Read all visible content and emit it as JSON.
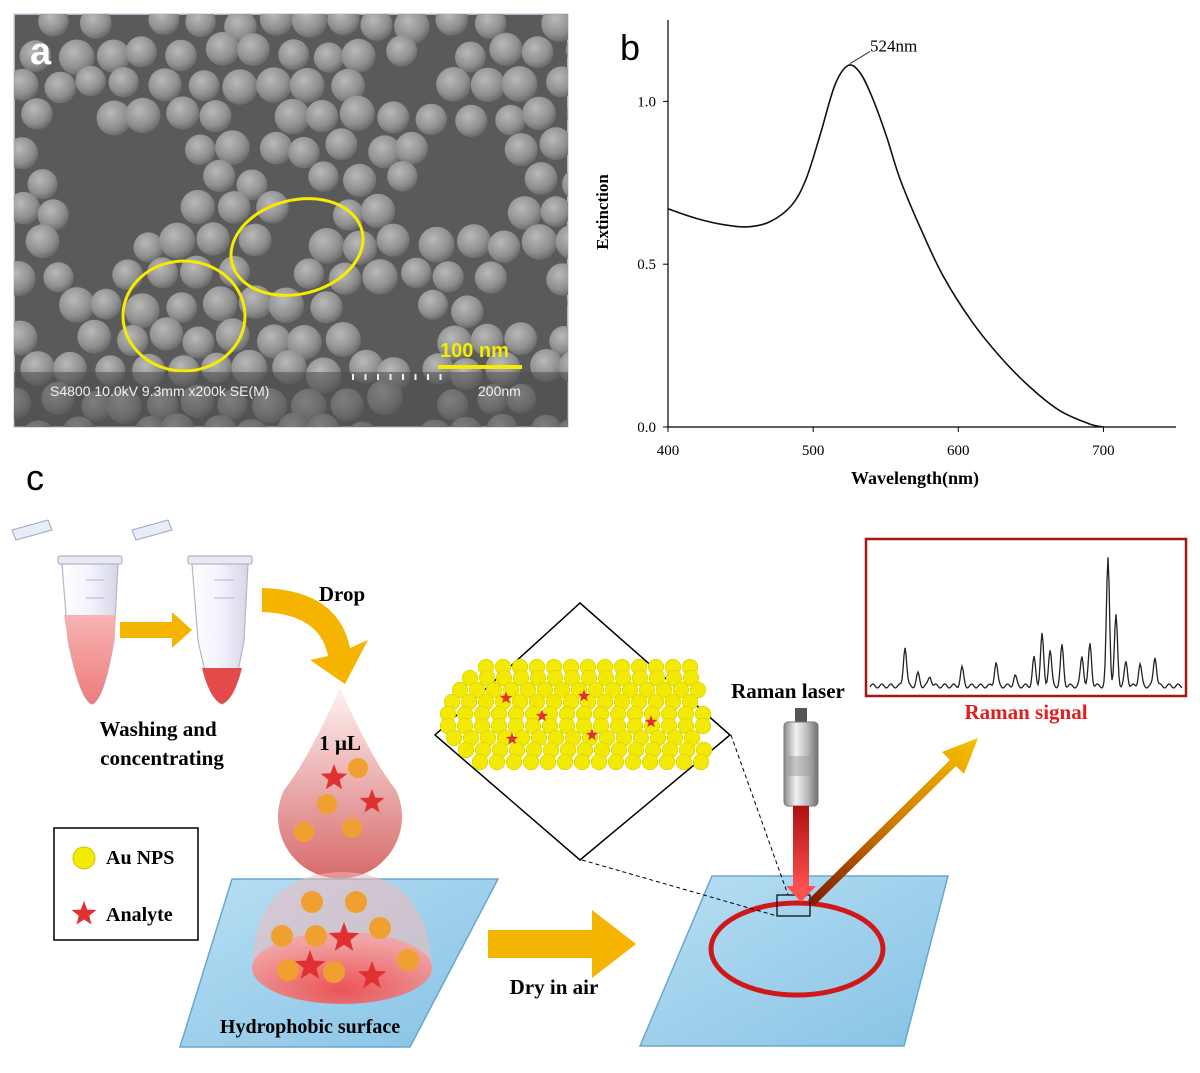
{
  "panel_a": {
    "label": "a",
    "scale_bar_label": "100 nm",
    "info_bar_text": "S4800 10.0kV 9.3mm x200k SE(M)",
    "info_bar_scale": "200nm"
  },
  "panel_b": {
    "label": "b",
    "peak_annotation": "524nm"
  },
  "chart_data": {
    "type": "line",
    "xlabel": "Wavelength(nm)",
    "ylabel": "Extinction",
    "xlim": [
      400,
      750
    ],
    "ylim": [
      0,
      1.25
    ],
    "x_ticks": [
      "400",
      "500",
      "600",
      "700"
    ],
    "y_ticks": [
      "0.0",
      "0.5",
      "1.0"
    ],
    "grid": false,
    "series": [
      {
        "x": [
          400,
          420,
          440,
          455,
          470,
          485,
          495,
          505,
          515,
          524,
          532,
          540,
          550,
          560,
          575,
          590,
          610,
          630,
          650,
          670,
          690,
          700
        ],
        "values": [
          0.67,
          0.64,
          0.62,
          0.615,
          0.63,
          0.68,
          0.76,
          0.9,
          1.05,
          1.11,
          1.09,
          1.02,
          0.9,
          0.76,
          0.6,
          0.46,
          0.32,
          0.21,
          0.12,
          0.05,
          0.01,
          0.0
        ]
      }
    ]
  },
  "panel_c": {
    "label": "c",
    "washing_line1": "Washing and",
    "washing_line2": "concentrating",
    "drop_label": "Drop",
    "volume_label": "1 µL",
    "legend_au": "Au NPS",
    "legend_analyte": "Analyte",
    "surface_label": "Hydrophobic surface",
    "dry_label": "Dry in air",
    "laser_label": "Raman laser",
    "signal_label": "Raman signal",
    "colors": {
      "nanoparticle": "#f2ea00",
      "analyte": "#e03030",
      "arrow": "#f5b400",
      "signal_red": "#e02020",
      "frame_red": "#a01818",
      "surface": "#9fd1ec"
    }
  }
}
